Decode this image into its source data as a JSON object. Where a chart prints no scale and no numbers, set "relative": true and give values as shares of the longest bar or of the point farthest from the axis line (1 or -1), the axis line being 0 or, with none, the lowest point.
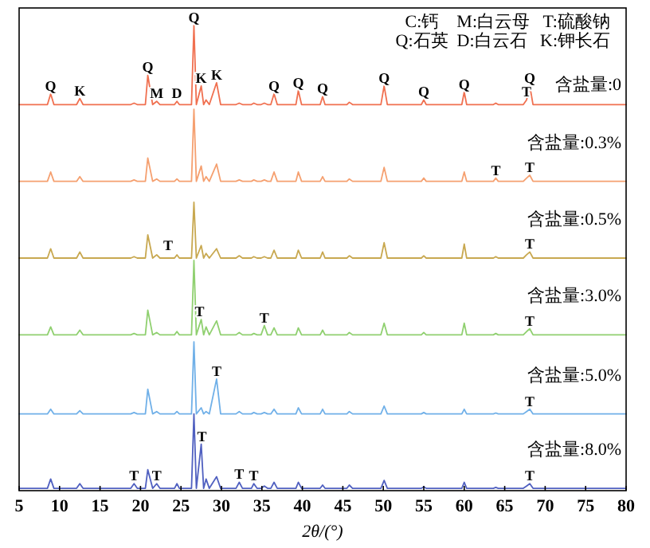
{
  "chart_data": {
    "type": "line",
    "relative": true,
    "xlabel": "2θ/(°)",
    "xlim": [
      5,
      80
    ],
    "xticks": [
      5,
      10,
      15,
      20,
      25,
      30,
      35,
      40,
      45,
      50,
      55,
      60,
      65,
      70,
      75,
      80
    ],
    "legend": false,
    "grid": false,
    "marker": "none",
    "line_style": "solid",
    "x": [
      5,
      8.5,
      8.9,
      9.3,
      12.1,
      12.5,
      12.9,
      18.8,
      19.2,
      19.6,
      20.6,
      20.9,
      21.5,
      22.0,
      22.4,
      24.2,
      24.5,
      24.8,
      26.3,
      26.6,
      26.9,
      27.5,
      27.8,
      28.1,
      28.5,
      29.4,
      29.9,
      31.8,
      32.2,
      32.6,
      33.7,
      34.0,
      34.4,
      34.9,
      35.3,
      35.7,
      36.1,
      36.5,
      36.9,
      39.2,
      39.5,
      39.9,
      42.2,
      42.5,
      42.8,
      45.5,
      45.8,
      46.2,
      49.7,
      50.1,
      50.5,
      54.7,
      55.0,
      55.3,
      59.7,
      60.0,
      60.3,
      63.6,
      63.9,
      64.2,
      67.3,
      67.7,
      68.1,
      68.5,
      75,
      80
    ],
    "series": [
      {
        "name": "含盐量:0",
        "color": "#f07050",
        "values": [
          0.83,
          0.83,
          0.853,
          0.83,
          0.83,
          0.843,
          0.83,
          0.83,
          0.833,
          0.83,
          0.83,
          0.893,
          0.83,
          0.837,
          0.83,
          0.83,
          0.837,
          0.83,
          0.83,
          1.0,
          0.83,
          0.87,
          0.83,
          0.84,
          0.83,
          0.877,
          0.83,
          0.83,
          0.833,
          0.83,
          0.83,
          0.833,
          0.83,
          0.83,
          0.833,
          0.83,
          0.83,
          0.853,
          0.83,
          0.83,
          0.86,
          0.83,
          0.83,
          0.847,
          0.83,
          0.83,
          0.835,
          0.83,
          0.83,
          0.87,
          0.83,
          0.83,
          0.84,
          0.83,
          0.83,
          0.857,
          0.83,
          0.83,
          0.833,
          0.83,
          0.83,
          0.84,
          0.87,
          0.83,
          0.83,
          0.83
        ]
      },
      {
        "name": "含盐量:0.3%",
        "color": "#f5a070",
        "values": [
          0.665,
          0.665,
          0.685,
          0.665,
          0.665,
          0.675,
          0.665,
          0.665,
          0.668,
          0.665,
          0.665,
          0.715,
          0.665,
          0.67,
          0.665,
          0.665,
          0.67,
          0.665,
          0.665,
          0.82,
          0.665,
          0.698,
          0.665,
          0.675,
          0.665,
          0.702,
          0.665,
          0.665,
          0.668,
          0.665,
          0.665,
          0.668,
          0.665,
          0.665,
          0.668,
          0.665,
          0.665,
          0.685,
          0.665,
          0.665,
          0.685,
          0.665,
          0.665,
          0.675,
          0.665,
          0.665,
          0.67,
          0.665,
          0.665,
          0.695,
          0.665,
          0.665,
          0.672,
          0.665,
          0.665,
          0.685,
          0.665,
          0.665,
          0.672,
          0.665,
          0.665,
          0.672,
          0.678,
          0.665,
          0.665,
          0.665
        ]
      },
      {
        "name": "含盐量:0.5%",
        "color": "#c8a850",
        "values": [
          0.5,
          0.5,
          0.52,
          0.5,
          0.5,
          0.513,
          0.5,
          0.5,
          0.503,
          0.5,
          0.5,
          0.55,
          0.5,
          0.507,
          0.5,
          0.5,
          0.507,
          0.5,
          0.5,
          0.62,
          0.5,
          0.527,
          0.5,
          0.51,
          0.5,
          0.52,
          0.5,
          0.5,
          0.505,
          0.5,
          0.5,
          0.503,
          0.5,
          0.5,
          0.503,
          0.5,
          0.5,
          0.517,
          0.5,
          0.5,
          0.517,
          0.5,
          0.5,
          0.513,
          0.5,
          0.5,
          0.505,
          0.5,
          0.5,
          0.533,
          0.5,
          0.5,
          0.505,
          0.5,
          0.5,
          0.53,
          0.5,
          0.5,
          0.503,
          0.5,
          0.5,
          0.507,
          0.513,
          0.5,
          0.5,
          0.5
        ]
      },
      {
        "name": "含盐量:3.0%",
        "color": "#90d070",
        "values": [
          0.335,
          0.335,
          0.352,
          0.335,
          0.335,
          0.345,
          0.335,
          0.335,
          0.338,
          0.335,
          0.335,
          0.388,
          0.335,
          0.34,
          0.335,
          0.335,
          0.342,
          0.335,
          0.335,
          0.495,
          0.335,
          0.368,
          0.335,
          0.352,
          0.335,
          0.365,
          0.335,
          0.335,
          0.34,
          0.335,
          0.335,
          0.338,
          0.335,
          0.335,
          0.355,
          0.335,
          0.335,
          0.35,
          0.335,
          0.335,
          0.35,
          0.335,
          0.335,
          0.345,
          0.335,
          0.335,
          0.34,
          0.335,
          0.335,
          0.36,
          0.335,
          0.335,
          0.34,
          0.335,
          0.335,
          0.36,
          0.335,
          0.335,
          0.338,
          0.335,
          0.335,
          0.342,
          0.348,
          0.335,
          0.335,
          0.335
        ]
      },
      {
        "name": "含盐量:5.0%",
        "color": "#70b0e8",
        "values": [
          0.165,
          0.165,
          0.175,
          0.165,
          0.165,
          0.172,
          0.165,
          0.165,
          0.168,
          0.165,
          0.165,
          0.218,
          0.165,
          0.17,
          0.165,
          0.165,
          0.17,
          0.165,
          0.165,
          0.32,
          0.165,
          0.178,
          0.165,
          0.17,
          0.165,
          0.24,
          0.165,
          0.165,
          0.17,
          0.165,
          0.165,
          0.168,
          0.165,
          0.165,
          0.168,
          0.165,
          0.165,
          0.175,
          0.165,
          0.165,
          0.178,
          0.165,
          0.165,
          0.175,
          0.165,
          0.165,
          0.17,
          0.165,
          0.165,
          0.182,
          0.165,
          0.165,
          0.168,
          0.165,
          0.165,
          0.175,
          0.165,
          0.165,
          0.167,
          0.165,
          0.165,
          0.17,
          0.175,
          0.165,
          0.165,
          0.165
        ]
      },
      {
        "name": "含盐量:8.0%",
        "color": "#5060c0",
        "values": [
          0.005,
          0.005,
          0.025,
          0.005,
          0.005,
          0.015,
          0.005,
          0.005,
          0.015,
          0.005,
          0.005,
          0.045,
          0.005,
          0.015,
          0.005,
          0.005,
          0.015,
          0.005,
          0.005,
          0.165,
          0.005,
          0.1,
          0.005,
          0.025,
          0.005,
          0.03,
          0.005,
          0.005,
          0.018,
          0.005,
          0.005,
          0.015,
          0.005,
          0.005,
          0.01,
          0.005,
          0.005,
          0.018,
          0.005,
          0.005,
          0.018,
          0.005,
          0.005,
          0.012,
          0.005,
          0.005,
          0.012,
          0.005,
          0.005,
          0.022,
          0.005,
          0.005,
          0.008,
          0.005,
          0.005,
          0.018,
          0.005,
          0.005,
          0.007,
          0.005,
          0.005,
          0.01,
          0.015,
          0.005,
          0.005,
          0.005
        ]
      }
    ],
    "annotations": [
      "C:钙    M:白云母   T:硫酸钠",
      "Q:石英  D:白云石   K:钾长石",
      {
        "text": "Q",
        "x": 8.9,
        "y": 0.853
      },
      {
        "text": "K",
        "x": 12.5,
        "y": 0.843
      },
      {
        "text": "Q",
        "x": 20.9,
        "y": 0.893
      },
      {
        "text": "M",
        "x": 22.0,
        "y": 0.837
      },
      {
        "text": "D",
        "x": 24.5,
        "y": 0.837
      },
      {
        "text": "Q",
        "x": 26.6,
        "y": 1.0
      },
      {
        "text": "K",
        "x": 27.5,
        "y": 0.87
      },
      {
        "text": "K",
        "x": 29.4,
        "y": 0.877
      },
      {
        "text": "Q",
        "x": 36.5,
        "y": 0.853
      },
      {
        "text": "Q",
        "x": 39.5,
        "y": 0.86
      },
      {
        "text": "Q",
        "x": 42.5,
        "y": 0.847
      },
      {
        "text": "Q",
        "x": 50.1,
        "y": 0.87
      },
      {
        "text": "Q",
        "x": 55.0,
        "y": 0.84
      },
      {
        "text": "Q",
        "x": 60.0,
        "y": 0.857
      },
      {
        "text": "T",
        "x": 67.7,
        "y": 0.84
      },
      {
        "text": "Q",
        "x": 68.1,
        "y": 0.87
      },
      {
        "text": "T",
        "x": 63.9,
        "y": 0.672
      },
      {
        "text": "T",
        "x": 68.1,
        "y": 0.678
      },
      {
        "text": "T",
        "x": 23.4,
        "y": 0.51
      },
      {
        "text": "T",
        "x": 68.1,
        "y": 0.513
      },
      {
        "text": "T",
        "x": 27.3,
        "y": 0.368
      },
      {
        "text": "T",
        "x": 35.3,
        "y": 0.355
      },
      {
        "text": "T",
        "x": 68.1,
        "y": 0.348
      },
      {
        "text": "T",
        "x": 29.4,
        "y": 0.24
      },
      {
        "text": "T",
        "x": 68.1,
        "y": 0.175
      },
      {
        "text": "T",
        "x": 19.2,
        "y": 0.015
      },
      {
        "text": "T",
        "x": 22.0,
        "y": 0.015
      },
      {
        "text": "T",
        "x": 27.6,
        "y": 0.1
      },
      {
        "text": "T",
        "x": 32.2,
        "y": 0.018
      },
      {
        "text": "T",
        "x": 34.0,
        "y": 0.015
      },
      {
        "text": "T",
        "x": 68.1,
        "y": 0.015
      }
    ]
  }
}
